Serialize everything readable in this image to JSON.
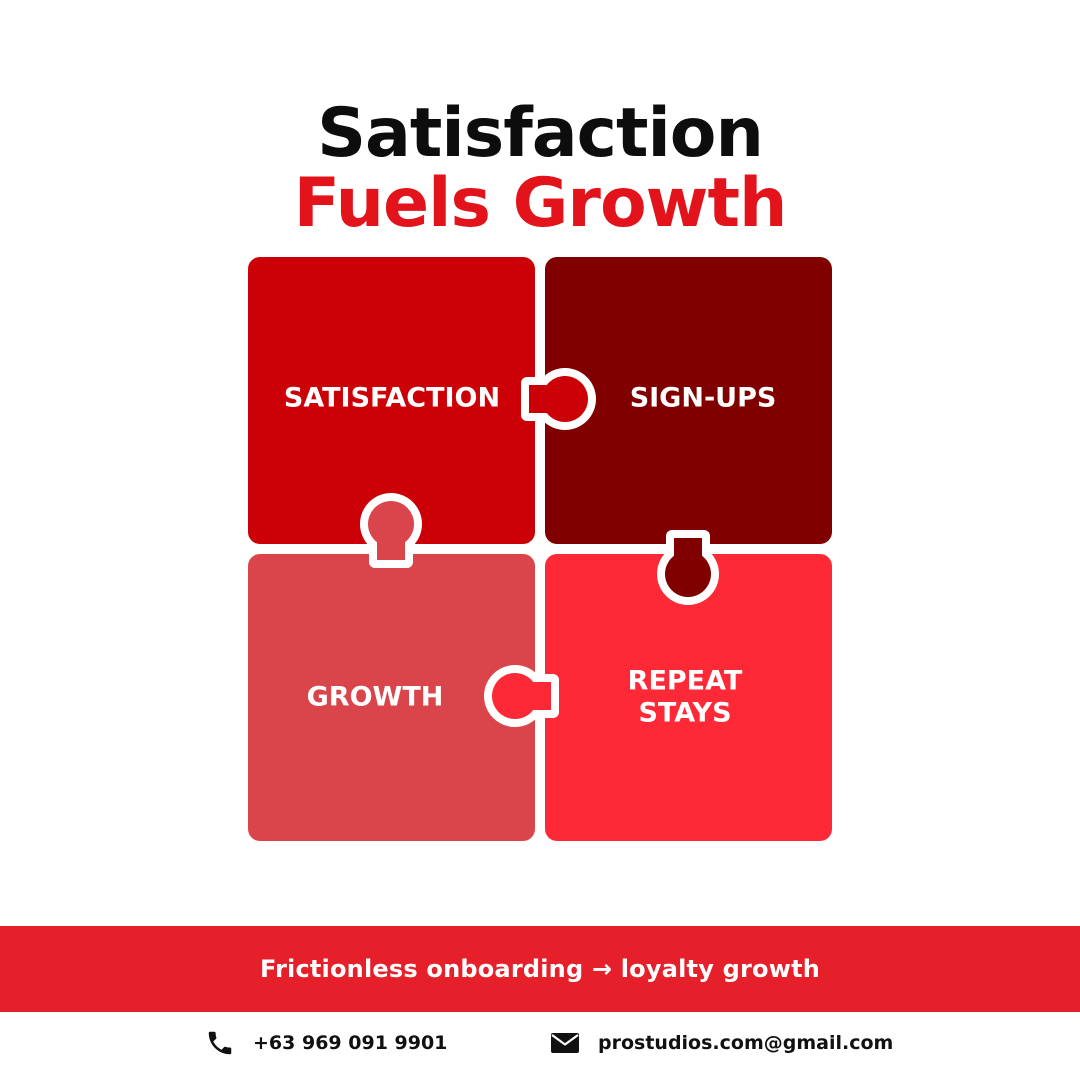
{
  "title": {
    "line1": "Satisfaction",
    "line2": "Fuels Growth"
  },
  "colors": {
    "title_dark": "#0d0d0d",
    "title_accent": "#e3131b",
    "banner": "#e5202a",
    "background": "#ffffff"
  },
  "pieces": [
    {
      "label_lines": [
        "SATISFACTION"
      ],
      "color": "#cc0007"
    },
    {
      "label_lines": [
        "SIGN-UPS"
      ],
      "color": "#800000"
    },
    {
      "label_lines": [
        "GROWTH"
      ],
      "color": "#da454b"
    },
    {
      "label_lines": [
        "REPEAT",
        "STAYS"
      ],
      "color": "#fd2937"
    }
  ],
  "banner": {
    "text": "Frictionless onboarding → loyalty growth"
  },
  "contact": {
    "phone_icon": "phone-icon",
    "phone": "+63 969 091 9901",
    "email_icon": "envelope-icon",
    "email": "prostudios.com@gmail.com"
  }
}
